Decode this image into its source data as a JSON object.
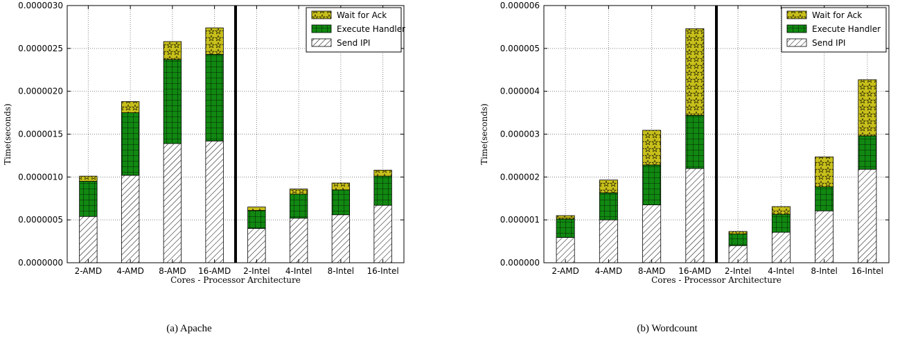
{
  "chart_data": [
    {
      "type": "bar",
      "stacked": true,
      "caption": "(a) Apache",
      "xlabel": "Cores - Processor Architecture",
      "ylabel": "Time(seconds)",
      "ylim": [
        0,
        3e-06
      ],
      "yticks": [
        "0.0000000",
        "0.0000005",
        "0.0000010",
        "0.0000015",
        "0.0000020",
        "0.0000025",
        "0.0000030"
      ],
      "categories": [
        "2-AMD",
        "4-AMD",
        "8-AMD",
        "16-AMD",
        "2-Intel",
        "4-Intel",
        "8-Intel",
        "16-Intel"
      ],
      "divider_after": "16-AMD",
      "grid": true,
      "legend_position": "top-right",
      "series": [
        {
          "name": "Send IPI",
          "values": [
            5.4e-07,
            1.02e-06,
            1.39e-06,
            1.42e-06,
            4e-07,
            5.2e-07,
            5.6e-07,
            6.7e-07
          ]
        },
        {
          "name": "Execute Handler",
          "values": [
            4.1e-07,
            7.3e-07,
            9.8e-07,
            1.01e-06,
            2.1e-07,
            2.8e-07,
            2.9e-07,
            3.4e-07
          ]
        },
        {
          "name": "Wait for Ack",
          "values": [
            6e-08,
            1.3e-07,
            2.1e-07,
            3.1e-07,
            4e-08,
            6e-08,
            8e-08,
            7e-08
          ]
        }
      ]
    },
    {
      "type": "bar",
      "stacked": true,
      "caption": "(b) Wordcount",
      "xlabel": "Cores - Processor Architecture",
      "ylabel": "Time(seconds)",
      "ylim": [
        0,
        6e-06
      ],
      "yticks": [
        "0.000000",
        "0.000001",
        "0.000002",
        "0.000003",
        "0.000004",
        "0.000005",
        "0.000006"
      ],
      "categories": [
        "2-AMD",
        "4-AMD",
        "8-AMD",
        "16-AMD",
        "2-Intel",
        "4-Intel",
        "8-Intel",
        "16-Intel"
      ],
      "divider_after": "16-AMD",
      "grid": true,
      "legend_position": "top-right",
      "series": [
        {
          "name": "Send IPI",
          "values": [
            5.9e-07,
            1e-06,
            1.35e-06,
            2.2e-06,
            4e-07,
            7.1e-07,
            1.21e-06,
            2.18e-06
          ]
        },
        {
          "name": "Execute Handler",
          "values": [
            4.3e-07,
            6.3e-07,
            9.3e-07,
            1.24e-06,
            2.7e-07,
            4.2e-07,
            5.6e-07,
            7.8e-07
          ]
        },
        {
          "name": "Wait for Ack",
          "values": [
            8e-08,
            3e-07,
            8.1e-07,
            2.02e-06,
            6e-08,
            1.8e-07,
            7e-07,
            1.31e-06
          ]
        }
      ]
    }
  ],
  "colors": {
    "send_ipi_fill": "#ffffff",
    "send_ipi_hatch": "#000000",
    "execute_handler_fill": "#118811",
    "wait_for_ack_fill": "#c8c01a",
    "grid": "#808080",
    "divider": "#000000"
  }
}
